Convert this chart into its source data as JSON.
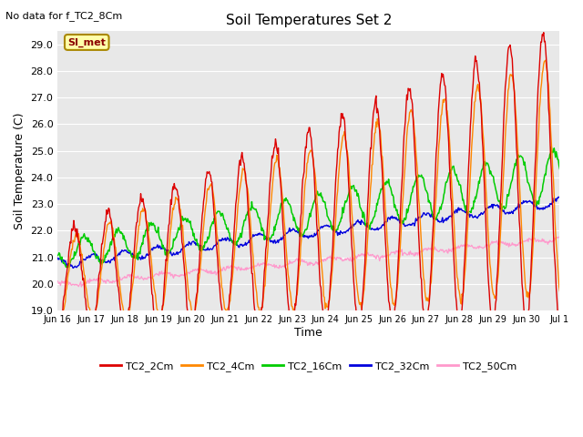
{
  "title": "Soil Temperatures Set 2",
  "subtitle": "No data for f_TC2_8Cm",
  "xlabel": "Time",
  "ylabel": "Soil Temperature (C)",
  "ylim": [
    19.0,
    29.5
  ],
  "yticks": [
    19.0,
    20.0,
    21.0,
    22.0,
    23.0,
    24.0,
    25.0,
    26.0,
    27.0,
    28.0,
    29.0
  ],
  "xtick_labels": [
    "Jun 16",
    "Jun 17",
    "Jun 18",
    "Jun 19",
    "Jun 20",
    "Jun 21",
    "Jun 22",
    "Jun 23",
    "Jun 24",
    "Jun 25",
    "Jun 26",
    "Jun 27",
    "Jun 28",
    "Jun 29",
    "Jun 30",
    "Jul 1"
  ],
  "colors": {
    "TC2_2Cm": "#dd0000",
    "TC2_4Cm": "#ff8800",
    "TC2_16Cm": "#00cc00",
    "TC2_32Cm": "#0000dd",
    "TC2_50Cm": "#ff99cc"
  },
  "legend_labels": [
    "TC2_2Cm",
    "TC2_4Cm",
    "TC2_16Cm",
    "TC2_32Cm",
    "TC2_50Cm"
  ],
  "fig_bg": "#ffffff",
  "plot_bg": "#e8e8e8",
  "annotation_text": "SI_met",
  "annotation_bg": "#ffffaa",
  "annotation_border": "#aa8800",
  "n_days": 15,
  "n_points_per_day": 48
}
